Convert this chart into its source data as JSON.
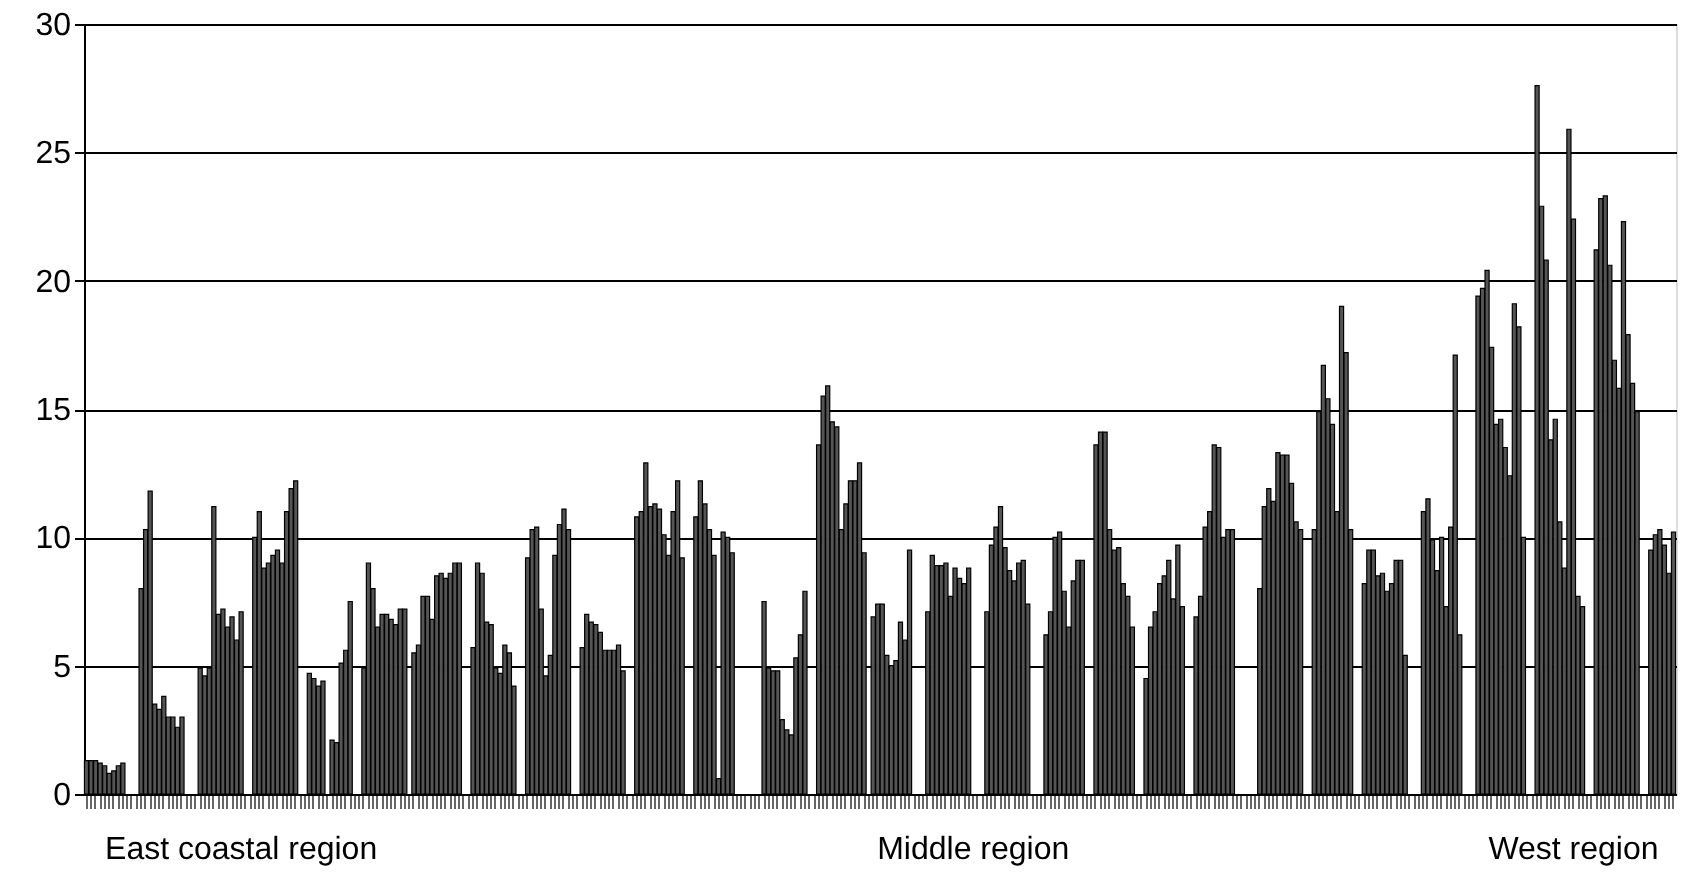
{
  "chart_data": {
    "type": "bar",
    "color": "#555555",
    "ylim": [
      0,
      30
    ],
    "yticks": [
      0,
      5,
      10,
      15,
      20,
      25,
      30
    ],
    "grid": "y",
    "categories": [
      null,
      null,
      null,
      null,
      null,
      null,
      null,
      null,
      null,
      null,
      null,
      null,
      null,
      null,
      null,
      null,
      null,
      null,
      null,
      null,
      null,
      null,
      null,
      null,
      null,
      null,
      null,
      null,
      null,
      null,
      null,
      null,
      null,
      null,
      "East coastal region",
      null,
      null,
      null,
      null,
      null,
      null,
      null,
      null,
      null,
      null,
      null,
      null,
      null,
      null,
      null,
      null,
      null,
      null,
      null,
      null,
      null,
      null,
      null,
      null,
      null,
      null,
      null,
      null,
      null,
      null,
      null,
      null,
      null,
      null,
      null,
      null,
      null,
      null,
      null,
      null,
      null,
      null,
      null,
      null,
      null,
      null,
      null,
      null,
      null,
      null,
      null,
      null,
      null,
      null,
      null,
      null,
      null,
      null,
      null,
      null,
      null,
      null,
      null,
      null,
      null,
      null,
      null,
      null,
      null,
      null,
      null,
      null,
      null,
      null,
      null,
      null,
      null,
      null,
      null,
      null,
      null,
      null,
      null,
      null,
      null,
      null,
      null,
      null,
      null,
      null,
      null,
      null,
      null,
      null,
      null,
      null,
      null,
      null,
      null,
      null,
      null,
      null,
      null,
      null,
      null,
      null,
      null,
      null,
      null,
      null,
      null,
      null,
      null,
      null,
      null,
      null,
      null,
      null,
      null,
      null,
      null,
      null,
      null,
      null,
      null,
      null,
      null,
      null,
      null,
      null,
      null,
      null,
      null,
      null,
      null,
      null,
      null,
      null,
      null,
      null,
      null,
      null,
      null,
      null,
      null,
      null,
      null,
      null,
      null,
      null,
      null,
      null,
      null,
      null,
      null,
      null,
      null,
      null,
      null,
      null,
      "Middle region",
      null,
      null,
      null,
      null,
      null,
      null,
      null,
      null,
      null,
      null,
      null,
      null,
      null,
      null,
      null,
      null,
      null,
      null,
      null,
      null,
      null,
      null,
      null,
      null,
      null,
      null,
      null,
      null,
      null,
      null,
      null,
      null,
      null,
      null,
      null,
      null,
      null,
      null,
      null,
      null,
      null,
      null,
      null,
      null,
      null,
      null,
      null,
      null,
      null,
      null,
      null,
      null,
      null,
      null,
      null,
      null,
      null,
      null,
      null,
      null,
      null,
      null,
      null,
      null,
      null,
      null,
      null,
      null,
      null,
      null,
      null,
      null,
      null,
      null,
      null,
      null,
      null,
      null,
      null,
      null,
      null,
      null,
      null,
      null,
      null,
      null,
      null,
      null,
      null,
      null,
      null,
      null,
      null,
      null,
      null,
      null,
      null,
      null,
      null,
      null,
      null,
      null,
      null,
      null,
      null,
      null,
      null,
      null,
      null,
      null,
      null,
      null,
      null,
      null,
      null,
      null,
      null,
      null,
      null,
      null,
      null,
      null,
      null,
      null,
      null,
      null,
      null,
      null,
      null,
      null,
      null,
      "West region",
      null,
      null,
      null,
      null,
      null,
      null,
      null,
      null,
      null,
      null,
      null,
      null,
      null,
      null,
      null,
      null,
      null,
      null,
      null,
      null,
      null,
      null
    ],
    "values": [
      1.3,
      1.3,
      1.3,
      1.2,
      1.1,
      0.8,
      0.9,
      1.1,
      1.2,
      null,
      null,
      null,
      8.0,
      10.3,
      11.8,
      3.5,
      3.3,
      3.8,
      3.0,
      3.0,
      2.6,
      3.0,
      null,
      null,
      null,
      4.9,
      4.6,
      4.9,
      11.2,
      7.0,
      7.2,
      6.5,
      6.9,
      6.0,
      7.1,
      null,
      null,
      10.0,
      11.0,
      8.8,
      9.0,
      9.3,
      9.5,
      9.0,
      11.0,
      11.9,
      12.2,
      null,
      null,
      4.7,
      4.5,
      4.2,
      4.4,
      null,
      2.1,
      2.0,
      5.1,
      5.6,
      7.5,
      null,
      null,
      4.9,
      9.0,
      8.0,
      6.5,
      7.0,
      7.0,
      6.8,
      6.6,
      7.2,
      7.2,
      null,
      5.5,
      5.8,
      7.7,
      7.7,
      6.8,
      8.5,
      8.6,
      8.4,
      8.6,
      9.0,
      9.0,
      null,
      null,
      5.7,
      9.0,
      8.6,
      6.7,
      6.6,
      4.9,
      4.7,
      5.8,
      5.5,
      4.2,
      null,
      null,
      9.2,
      10.3,
      10.4,
      7.2,
      4.6,
      5.4,
      9.3,
      10.5,
      11.1,
      10.3,
      null,
      null,
      5.7,
      7.0,
      6.7,
      6.6,
      6.3,
      5.6,
      5.6,
      5.6,
      5.8,
      4.8,
      null,
      null,
      10.8,
      11.0,
      12.9,
      11.2,
      11.3,
      11.1,
      10.1,
      9.3,
      11.0,
      12.2,
      9.2,
      null,
      null,
      10.8,
      12.2,
      11.3,
      10.3,
      9.3,
      0.6,
      10.2,
      10.0,
      9.4,
      null,
      null,
      null,
      null,
      null,
      null,
      7.5,
      4.9,
      4.8,
      4.8,
      2.9,
      2.5,
      2.3,
      5.3,
      6.2,
      7.9,
      null,
      null,
      13.6,
      15.5,
      15.9,
      14.5,
      14.3,
      10.3,
      11.3,
      12.2,
      12.2,
      12.9,
      9.4,
      null,
      6.9,
      7.4,
      7.4,
      5.4,
      5.0,
      5.2,
      6.7,
      6.0,
      9.5,
      null,
      null,
      null,
      7.1,
      9.3,
      8.9,
      8.9,
      9.0,
      7.7,
      8.8,
      8.4,
      8.2,
      8.8,
      null,
      null,
      null,
      7.1,
      9.7,
      10.4,
      11.2,
      9.6,
      8.7,
      8.3,
      9.0,
      9.1,
      7.4,
      null,
      null,
      null,
      6.2,
      7.1,
      10.0,
      10.2,
      7.9,
      6.5,
      8.3,
      9.1,
      9.1,
      null,
      null,
      13.6,
      14.1,
      14.1,
      10.3,
      9.5,
      9.6,
      8.2,
      7.7,
      6.5,
      null,
      null,
      4.5,
      6.5,
      7.1,
      8.2,
      8.5,
      9.1,
      7.6,
      9.7,
      7.3,
      null,
      null,
      6.9,
      7.7,
      10.4,
      11.0,
      13.6,
      13.5,
      10.0,
      10.3,
      10.3,
      null,
      null,
      null,
      null,
      null,
      8.0,
      11.2,
      11.9,
      11.4,
      13.3,
      13.2,
      13.2,
      12.1,
      10.6,
      10.3,
      null,
      null,
      10.3,
      14.9,
      16.7,
      15.4,
      14.4,
      11.0,
      19.0,
      17.2,
      10.3,
      null,
      null,
      8.2,
      9.5,
      9.5,
      8.5,
      8.6,
      7.9,
      8.2,
      9.1,
      9.1,
      5.4,
      null,
      null,
      null,
      11.0,
      11.5,
      9.9,
      8.7,
      10.0,
      7.3,
      10.4,
      17.1,
      6.2,
      null,
      null,
      null,
      19.4,
      19.7,
      20.4,
      17.4,
      14.4,
      14.6,
      13.5,
      12.4,
      19.1,
      18.2,
      10.0,
      null,
      null,
      27.6,
      22.9,
      20.8,
      13.8,
      14.6,
      10.6,
      8.8,
      25.9,
      22.4,
      7.7,
      7.3,
      null,
      null,
      21.2,
      23.2,
      23.3,
      20.6,
      16.9,
      15.8,
      22.3,
      17.9,
      16.0,
      14.9,
      null,
      null,
      9.5,
      10.1,
      10.3,
      9.7,
      8.6,
      10.2
    ]
  }
}
